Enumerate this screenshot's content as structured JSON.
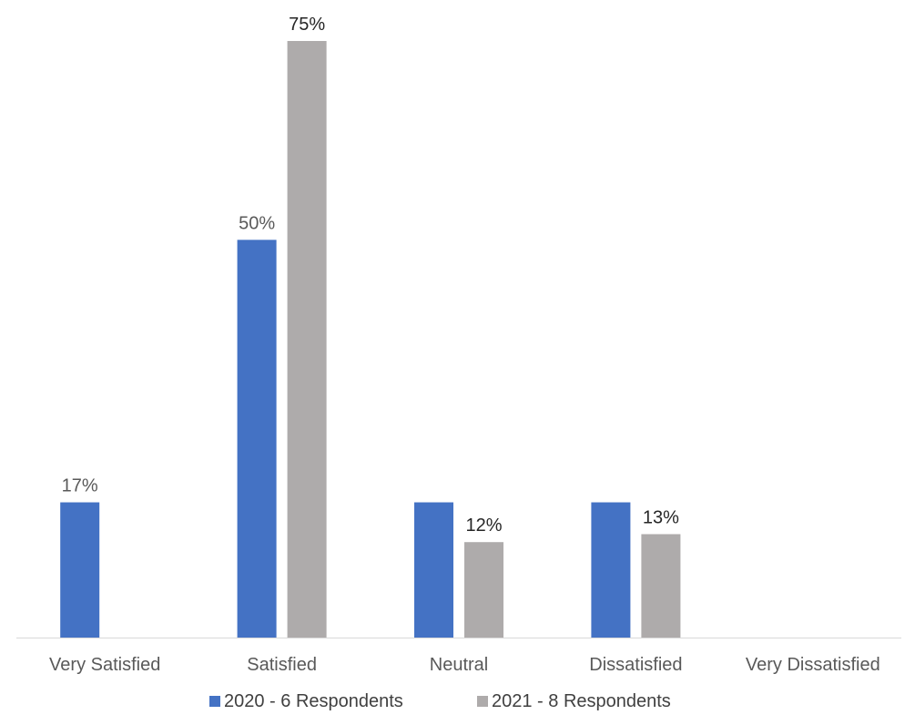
{
  "chart_data": {
    "type": "bar",
    "categories": [
      "Very Satisfied",
      "Satisfied",
      "Neutral",
      "Dissatisfied",
      "Very Dissatisfied"
    ],
    "series": [
      {
        "name": "2020 - 6 Respondents",
        "values": [
          17,
          50,
          17,
          17,
          0
        ],
        "labels": [
          "17%",
          "50%",
          "",
          "",
          ""
        ],
        "color": "#4472C4",
        "label_color": "#595959"
      },
      {
        "name": "2021 - 8 Respondents",
        "values": [
          0,
          75,
          12,
          13,
          0
        ],
        "labels": [
          "",
          "75%",
          "12%",
          "13%",
          ""
        ],
        "color": "#AEABAB",
        "label_color": "#262626"
      }
    ],
    "ylim": [
      0,
      75
    ],
    "grid": false,
    "legend_position": "bottom",
    "axis_line_color": "#D9D9D9"
  }
}
